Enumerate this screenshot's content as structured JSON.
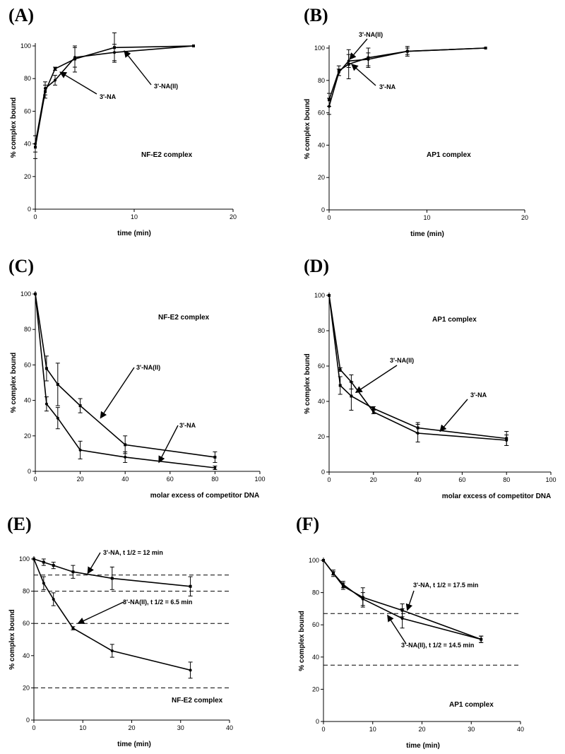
{
  "chart_data": [
    {
      "id": "A",
      "panel_label": "(A)",
      "type": "line",
      "xlabel": "time (min)",
      "ylabel": "% complex bound",
      "xlim": [
        0,
        20
      ],
      "ylim": [
        0,
        100
      ],
      "xticks": [
        0,
        10,
        20
      ],
      "yticks": [
        0,
        20,
        40,
        60,
        80,
        100
      ],
      "complex_label": "NF-E2 complex",
      "series": [
        {
          "name": "3'-NA",
          "x": [
            0,
            1,
            2,
            4,
            8,
            16
          ],
          "y": [
            38,
            72,
            86,
            92,
            99,
            100
          ],
          "err": [
            7,
            4,
            1,
            8,
            9,
            0
          ]
        },
        {
          "name": "3'-NA(II)",
          "x": [
            0,
            1,
            2,
            4,
            8,
            16
          ],
          "y": [
            40,
            74,
            79,
            93,
            96,
            100
          ],
          "err": [
            5,
            4,
            3,
            6,
            5,
            0
          ]
        }
      ],
      "annotations": [
        {
          "text": "3'-NA",
          "target": [
            2.5,
            84
          ]
        },
        {
          "text": "3'-NA(II)",
          "target": [
            9,
            97
          ]
        }
      ],
      "dashed_lines": []
    },
    {
      "id": "B",
      "panel_label": "(B)",
      "type": "line",
      "xlabel": "time (min)",
      "ylabel": "% complex bound",
      "xlim": [
        0,
        20
      ],
      "ylim": [
        0,
        100
      ],
      "xticks": [
        0,
        10,
        20
      ],
      "yticks": [
        0,
        20,
        40,
        60,
        80,
        100
      ],
      "complex_label": "AP1 complex",
      "series": [
        {
          "name": "3'-NA",
          "x": [
            0,
            1,
            2,
            4,
            8,
            16
          ],
          "y": [
            68,
            86,
            90,
            94,
            98,
            100
          ],
          "err": [
            4,
            3,
            9,
            6,
            3,
            0
          ]
        },
        {
          "name": "3'-NA(II)",
          "x": [
            0,
            1,
            2,
            4,
            8,
            16
          ],
          "y": [
            64,
            85,
            92,
            93,
            98,
            100
          ],
          "err": [
            5,
            2,
            4,
            4,
            2,
            0
          ]
        }
      ],
      "annotations": [
        {
          "text": "3'-NA(II)",
          "target": [
            2.1,
            93
          ]
        },
        {
          "text": "3'-NA",
          "target": [
            2.3,
            90
          ]
        }
      ],
      "dashed_lines": []
    },
    {
      "id": "C",
      "panel_label": "(C)",
      "type": "line",
      "xlabel": "molar excess of competitor DNA",
      "ylabel": "% complex bound",
      "xlim": [
        0,
        100
      ],
      "ylim": [
        0,
        100
      ],
      "xticks": [
        0,
        20,
        40,
        60,
        80,
        100
      ],
      "yticks": [
        0,
        20,
        40,
        60,
        80,
        100
      ],
      "complex_label": "NF-E2 complex",
      "series": [
        {
          "name": "3'-NA(II)",
          "x": [
            0,
            5,
            10,
            20,
            40,
            80
          ],
          "y": [
            100,
            58,
            49,
            37,
            15,
            8
          ],
          "err": [
            0,
            7,
            12,
            4,
            5,
            3
          ]
        },
        {
          "name": "3'-NA",
          "x": [
            0,
            5,
            10,
            20,
            40,
            80
          ],
          "y": [
            100,
            38,
            30,
            12,
            8,
            2
          ],
          "err": [
            0,
            4,
            6,
            5,
            3,
            1
          ]
        }
      ],
      "annotations": [
        {
          "text": "3'-NA(II)",
          "target": [
            29,
            30
          ]
        },
        {
          "text": "3'-NA",
          "target": [
            55,
            5
          ]
        }
      ],
      "dashed_lines": []
    },
    {
      "id": "D",
      "panel_label": "(D)",
      "type": "line",
      "xlabel": "molar excess of competitor DNA",
      "ylabel": "% complex bound",
      "xlim": [
        0,
        100
      ],
      "ylim": [
        0,
        100
      ],
      "xticks": [
        0,
        20,
        40,
        60,
        80,
        100
      ],
      "yticks": [
        0,
        20,
        40,
        60,
        80,
        100
      ],
      "complex_label": "AP1 complex",
      "series": [
        {
          "name": "3'-NA(II)",
          "x": [
            0,
            5,
            10,
            20,
            40,
            80
          ],
          "y": [
            100,
            49,
            43,
            36,
            25,
            19
          ],
          "err": [
            0,
            5,
            8,
            1,
            3,
            4
          ]
        },
        {
          "name": "3'-NA",
          "x": [
            0,
            5,
            10,
            20,
            40,
            80
          ],
          "y": [
            100,
            58,
            51,
            34,
            22,
            18
          ],
          "err": [
            0,
            1,
            4,
            1,
            5,
            3
          ]
        }
      ],
      "annotations": [
        {
          "text": "3'-NA(II)",
          "target": [
            12,
            45
          ]
        },
        {
          "text": "3'-NA",
          "target": [
            50,
            23
          ]
        }
      ],
      "dashed_lines": []
    },
    {
      "id": "E",
      "panel_label": "(E)",
      "type": "line",
      "xlabel": "time (min)",
      "ylabel": "% complex bound",
      "xlim": [
        0,
        40
      ],
      "ylim": [
        0,
        100
      ],
      "xticks": [
        0,
        10,
        20,
        30,
        40
      ],
      "yticks": [
        0,
        20,
        40,
        60,
        80,
        100
      ],
      "complex_label": "NF-E2 complex",
      "series": [
        {
          "name": "3'-NA, t 1/2 = 12 min",
          "x": [
            0,
            2,
            4,
            8,
            16,
            32
          ],
          "y": [
            100,
            98,
            96,
            92,
            88,
            83
          ],
          "err": [
            0,
            2,
            2,
            4,
            7,
            6
          ]
        },
        {
          "name": "3'-NA(II), t 1/2 = 6.5 min",
          "x": [
            0,
            2,
            4,
            8,
            16,
            32
          ],
          "y": [
            100,
            85,
            75,
            57,
            43,
            31
          ],
          "err": [
            0,
            4,
            4,
            1,
            4,
            5
          ]
        }
      ],
      "annotations": [
        {
          "text": "3'-NA, t 1/2 = 12 min",
          "target": [
            11,
            91
          ]
        },
        {
          "text": "3'-NA(II), t 1/2 = 6.5 min",
          "target": [
            9,
            60
          ]
        }
      ],
      "dashed_lines": [
        90,
        80,
        60,
        20
      ]
    },
    {
      "id": "F",
      "panel_label": "(F)",
      "type": "line",
      "xlabel": "time (min)",
      "ylabel": "% complex bound",
      "xlim": [
        0,
        40
      ],
      "ylim": [
        0,
        100
      ],
      "xticks": [
        0,
        10,
        20,
        30,
        40
      ],
      "yticks": [
        0,
        20,
        40,
        60,
        80,
        100
      ],
      "complex_label": "AP1 complex",
      "series": [
        {
          "name": "3'-NA, t 1/2 = 17.5 min",
          "x": [
            0,
            2,
            4,
            8,
            16,
            32
          ],
          "y": [
            100,
            92,
            84,
            77,
            69,
            51
          ],
          "err": [
            0,
            1,
            2,
            6,
            4,
            2
          ]
        },
        {
          "name": "3'-NA(II), t 1/2 = 14.5 min",
          "x": [
            0,
            2,
            4,
            8,
            16,
            32
          ],
          "y": [
            100,
            92,
            85,
            76,
            64,
            51
          ],
          "err": [
            0,
            2,
            2,
            4,
            6,
            2
          ]
        }
      ],
      "annotations": [
        {
          "text": "3'-NA, t 1/2 = 17.5 min",
          "target": [
            17,
            69
          ]
        },
        {
          "text": "3'-NA(II), t 1/2 = 14.5 min",
          "target": [
            13,
            66
          ]
        }
      ],
      "dashed_lines": [
        67,
        35
      ]
    }
  ]
}
